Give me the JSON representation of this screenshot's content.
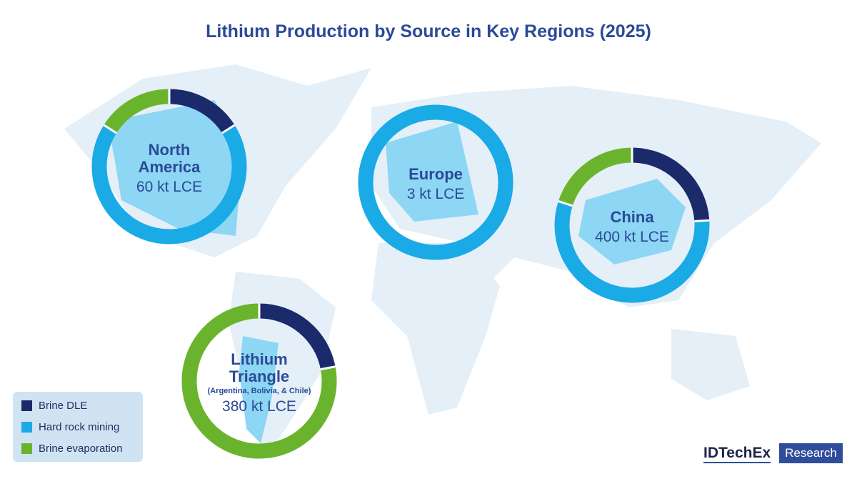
{
  "title": "Lithium Production by Source in Key Regions (2025)",
  "logo": {
    "name": "IDTechEx",
    "tag": "Research"
  },
  "chart_data": [
    {
      "type": "pie",
      "title": "North America",
      "subtitle": "60 kt LCE",
      "categories": [
        "Brine DLE",
        "Hard rock mining",
        "Brine evaporation"
      ],
      "values": [
        16,
        68,
        16
      ],
      "colors": [
        "#1b2a6b",
        "#1aaae6",
        "#6ab42d"
      ]
    },
    {
      "type": "pie",
      "title": "Europe",
      "subtitle": "3 kt LCE",
      "categories": [
        "Brine DLE",
        "Hard rock mining",
        "Brine evaporation"
      ],
      "values": [
        0,
        100,
        0
      ],
      "colors": [
        "#1b2a6b",
        "#1aaae6",
        "#6ab42d"
      ]
    },
    {
      "type": "pie",
      "title": "China",
      "subtitle": "400 kt LCE",
      "categories": [
        "Brine DLE",
        "Hard rock mining",
        "Brine evaporation"
      ],
      "values": [
        24,
        56,
        20
      ],
      "colors": [
        "#1b2a6b",
        "#1aaae6",
        "#6ab42d"
      ]
    },
    {
      "type": "pie",
      "title": "Lithium Triangle",
      "note": "(Argentina, Bolivia, & Chile)",
      "subtitle": "380 kt LCE",
      "categories": [
        "Brine DLE",
        "Hard rock mining",
        "Brine evaporation"
      ],
      "values": [
        22,
        0,
        78
      ],
      "colors": [
        "#1b2a6b",
        "#1aaae6",
        "#6ab42d"
      ]
    }
  ]
}
